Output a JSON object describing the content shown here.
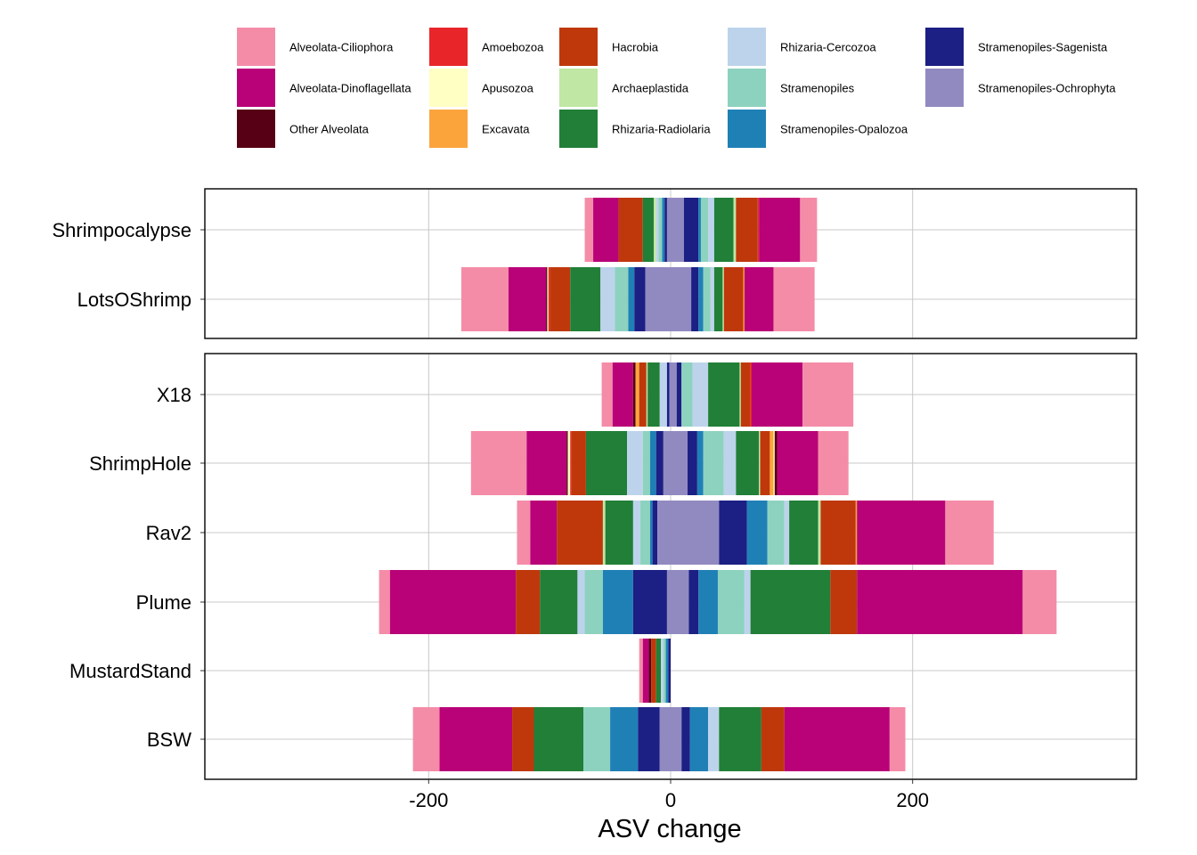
{
  "chart_data": {
    "type": "bar",
    "orientation": "horizontal-stacked-diverging",
    "xlabel": "ASV change",
    "xlim": [
      -385,
      385
    ],
    "xticks": [
      -200,
      0,
      200
    ],
    "grid": true,
    "legend_position": "top",
    "legend": [
      {
        "name": "Alveolata-Ciliophora",
        "color": "#F48CA8"
      },
      {
        "name": "Alveolata-Dinoflagellata",
        "color": "#B90277"
      },
      {
        "name": "Other Alveolata",
        "color": "#570015"
      },
      {
        "name": "Amoebozoa",
        "color": "#E8262A"
      },
      {
        "name": "Apusozoa",
        "color": "#FFFFC3"
      },
      {
        "name": "Excavata",
        "color": "#FBA43C"
      },
      {
        "name": "Hacrobia",
        "color": "#BF380B"
      },
      {
        "name": "Archaeplastida",
        "color": "#C0E7A4"
      },
      {
        "name": "Rhizaria-Radiolaria",
        "color": "#217F38"
      },
      {
        "name": "Rhizaria-Cercozoa",
        "color": "#BDD3EC"
      },
      {
        "name": "Stramenopiles",
        "color": "#8DD2BE"
      },
      {
        "name": "Stramenopiles-Opalozoa",
        "color": "#1F80B6"
      },
      {
        "name": "Stramenopiles-Sagenista",
        "color": "#1C1F83"
      },
      {
        "name": "Stramenopiles-Ochrophyta",
        "color": "#918AC1"
      }
    ],
    "panels": [
      {
        "categories": [
          "Shrimpocalypse",
          "LotsOShrimp"
        ],
        "bars": [
          {
            "category": "Shrimpocalypse",
            "segments": [
              [
                -71,
                -64,
                "#F48CA8"
              ],
              [
                -64,
                -43,
                "#B90277"
              ],
              [
                -43,
                -23,
                "#BF380B"
              ],
              [
                -23,
                -14,
                "#217F38"
              ],
              [
                -14,
                -12,
                "#C0E7A4"
              ],
              [
                -12,
                -10,
                "#BDD3EC"
              ],
              [
                -10,
                -7,
                "#8DD2BE"
              ],
              [
                -7,
                -5,
                "#1F80B6"
              ],
              [
                -5,
                -3,
                "#1C1F83"
              ],
              [
                -3,
                11,
                "#918AC1"
              ],
              [
                11,
                23,
                "#1C1F83"
              ],
              [
                23,
                25,
                "#1F80B6"
              ],
              [
                25,
                31,
                "#8DD2BE"
              ],
              [
                31,
                36,
                "#BDD3EC"
              ],
              [
                36,
                52,
                "#217F38"
              ],
              [
                52,
                54,
                "#C0E7A4"
              ],
              [
                54,
                72,
                "#BF380B"
              ],
              [
                72,
                73,
                "#E8262A"
              ],
              [
                73,
                107,
                "#B90277"
              ],
              [
                107,
                121,
                "#F48CA8"
              ]
            ]
          },
          {
            "category": "LotsOShrimp",
            "segments": [
              [
                -173,
                -134,
                "#F48CA8"
              ],
              [
                -134,
                -103,
                "#B90277"
              ],
              [
                -103,
                -102,
                "#570015"
              ],
              [
                -102,
                -101,
                "#FFFFC3"
              ],
              [
                -101,
                -100,
                "#E8262A"
              ],
              [
                -100,
                -83,
                "#BF380B"
              ],
              [
                -83,
                -58,
                "#217F38"
              ],
              [
                -58,
                -46,
                "#BDD3EC"
              ],
              [
                -46,
                -35,
                "#8DD2BE"
              ],
              [
                -35,
                -30,
                "#1F80B6"
              ],
              [
                -30,
                -21,
                "#1C1F83"
              ],
              [
                -21,
                17,
                "#918AC1"
              ],
              [
                17,
                23,
                "#1C1F83"
              ],
              [
                23,
                27,
                "#1F80B6"
              ],
              [
                27,
                33,
                "#8DD2BE"
              ],
              [
                33,
                36,
                "#BDD3EC"
              ],
              [
                36,
                43,
                "#217F38"
              ],
              [
                43,
                44,
                "#C0E7A4"
              ],
              [
                44,
                60,
                "#BF380B"
              ],
              [
                60,
                61,
                "#FBA43C"
              ],
              [
                61,
                85,
                "#B90277"
              ],
              [
                85,
                119,
                "#F48CA8"
              ]
            ]
          }
        ]
      },
      {
        "categories": [
          "X18",
          "ShrimpHole",
          "Rav2",
          "Plume",
          "MustardStand",
          "BSW"
        ],
        "bars": [
          {
            "category": "X18",
            "segments": [
              [
                -57,
                -48,
                "#F48CA8"
              ],
              [
                -48,
                -31,
                "#B90277"
              ],
              [
                -31,
                -29,
                "#570015"
              ],
              [
                -29,
                -26,
                "#FBA43C"
              ],
              [
                -26,
                -20,
                "#BF380B"
              ],
              [
                -20,
                -19,
                "#C0E7A4"
              ],
              [
                -19,
                -9,
                "#217F38"
              ],
              [
                -9,
                -3,
                "#BDD3EC"
              ],
              [
                -3,
                -1,
                "#1C1F83"
              ],
              [
                -1,
                5,
                "#918AC1"
              ],
              [
                5,
                9,
                "#1C1F83"
              ],
              [
                9,
                18,
                "#8DD2BE"
              ],
              [
                18,
                31,
                "#BDD3EC"
              ],
              [
                31,
                57,
                "#217F38"
              ],
              [
                57,
                58,
                "#C0E7A4"
              ],
              [
                58,
                66,
                "#BF380B"
              ],
              [
                66,
                67,
                "#E8262A"
              ],
              [
                67,
                109,
                "#B90277"
              ],
              [
                109,
                151,
                "#F48CA8"
              ]
            ]
          },
          {
            "category": "ShrimpHole",
            "segments": [
              [
                -165,
                -119,
                "#F48CA8"
              ],
              [
                -119,
                -86,
                "#B90277"
              ],
              [
                -86,
                -85,
                "#570015"
              ],
              [
                -85,
                -83,
                "#FFFFC3"
              ],
              [
                -83,
                -82,
                "#E8262A"
              ],
              [
                -82,
                -70,
                "#BF380B"
              ],
              [
                -70,
                -36,
                "#217F38"
              ],
              [
                -36,
                -23,
                "#BDD3EC"
              ],
              [
                -23,
                -17,
                "#8DD2BE"
              ],
              [
                -17,
                -12,
                "#1F80B6"
              ],
              [
                -12,
                -6,
                "#1C1F83"
              ],
              [
                -6,
                14,
                "#918AC1"
              ],
              [
                14,
                22,
                "#1C1F83"
              ],
              [
                22,
                27,
                "#1F80B6"
              ],
              [
                27,
                44,
                "#8DD2BE"
              ],
              [
                44,
                54,
                "#BDD3EC"
              ],
              [
                54,
                73,
                "#217F38"
              ],
              [
                73,
                74,
                "#C0E7A4"
              ],
              [
                74,
                82,
                "#BF380B"
              ],
              [
                82,
                85,
                "#FBA43C"
              ],
              [
                85,
                86,
                "#FFFFC3"
              ],
              [
                86,
                88,
                "#570015"
              ],
              [
                88,
                122,
                "#B90277"
              ],
              [
                122,
                147,
                "#F48CA8"
              ]
            ]
          },
          {
            "category": "Rav2",
            "segments": [
              [
                -127,
                -116,
                "#F48CA8"
              ],
              [
                -116,
                -94,
                "#B90277"
              ],
              [
                -94,
                -56,
                "#BF380B"
              ],
              [
                -56,
                -54,
                "#C0E7A4"
              ],
              [
                -54,
                -31,
                "#217F38"
              ],
              [
                -31,
                -25,
                "#BDD3EC"
              ],
              [
                -25,
                -17,
                "#8DD2BE"
              ],
              [
                -17,
                -15,
                "#1F80B6"
              ],
              [
                -15,
                -11,
                "#1C1F83"
              ],
              [
                -11,
                40,
                "#918AC1"
              ],
              [
                40,
                63,
                "#1C1F83"
              ],
              [
                63,
                80,
                "#1F80B6"
              ],
              [
                80,
                94,
                "#8DD2BE"
              ],
              [
                94,
                98,
                "#BDD3EC"
              ],
              [
                98,
                122,
                "#217F38"
              ],
              [
                122,
                124,
                "#C0E7A4"
              ],
              [
                124,
                153,
                "#BF380B"
              ],
              [
                153,
                154,
                "#FBA43C"
              ],
              [
                154,
                227,
                "#B90277"
              ],
              [
                227,
                267,
                "#F48CA8"
              ]
            ]
          },
          {
            "category": "Plume",
            "segments": [
              [
                -241,
                -232,
                "#F48CA8"
              ],
              [
                -232,
                -128,
                "#B90277"
              ],
              [
                -128,
                -108,
                "#BF380B"
              ],
              [
                -108,
                -77,
                "#217F38"
              ],
              [
                -77,
                -71,
                "#BDD3EC"
              ],
              [
                -71,
                -56,
                "#8DD2BE"
              ],
              [
                -56,
                -31,
                "#1F80B6"
              ],
              [
                -31,
                -3,
                "#1C1F83"
              ],
              [
                -3,
                15,
                "#918AC1"
              ],
              [
                15,
                23,
                "#1C1F83"
              ],
              [
                23,
                39,
                "#1F80B6"
              ],
              [
                39,
                61,
                "#8DD2BE"
              ],
              [
                61,
                66,
                "#BDD3EC"
              ],
              [
                66,
                132,
                "#217F38"
              ],
              [
                132,
                154,
                "#BF380B"
              ],
              [
                154,
                291,
                "#B90277"
              ],
              [
                291,
                319,
                "#F48CA8"
              ]
            ]
          },
          {
            "category": "MustardStand",
            "segments": [
              [
                -26,
                -23,
                "#F48CA8"
              ],
              [
                -23,
                -18,
                "#B90277"
              ],
              [
                -18,
                -16,
                "#570015"
              ],
              [
                -16,
                -12,
                "#BF380B"
              ],
              [
                -12,
                -8,
                "#217F38"
              ],
              [
                -8,
                -6,
                "#BDD3EC"
              ],
              [
                -6,
                -4,
                "#8DD2BE"
              ],
              [
                -4,
                -2,
                "#1F80B6"
              ],
              [
                -2,
                0,
                "#1C1F83"
              ]
            ]
          },
          {
            "category": "BSW",
            "segments": [
              [
                -213,
                -191,
                "#F48CA8"
              ],
              [
                -191,
                -131,
                "#B90277"
              ],
              [
                -131,
                -113,
                "#BF380B"
              ],
              [
                -113,
                -72,
                "#217F38"
              ],
              [
                -72,
                -50,
                "#8DD2BE"
              ],
              [
                -50,
                -27,
                "#1F80B6"
              ],
              [
                -27,
                -9,
                "#1C1F83"
              ],
              [
                -9,
                9,
                "#918AC1"
              ],
              [
                9,
                16,
                "#1C1F83"
              ],
              [
                16,
                31,
                "#1F80B6"
              ],
              [
                31,
                40,
                "#BDD3EC"
              ],
              [
                40,
                75,
                "#217F38"
              ],
              [
                75,
                94,
                "#BF380B"
              ],
              [
                94,
                181,
                "#B90277"
              ],
              [
                181,
                194,
                "#F48CA8"
              ]
            ]
          }
        ]
      }
    ]
  }
}
